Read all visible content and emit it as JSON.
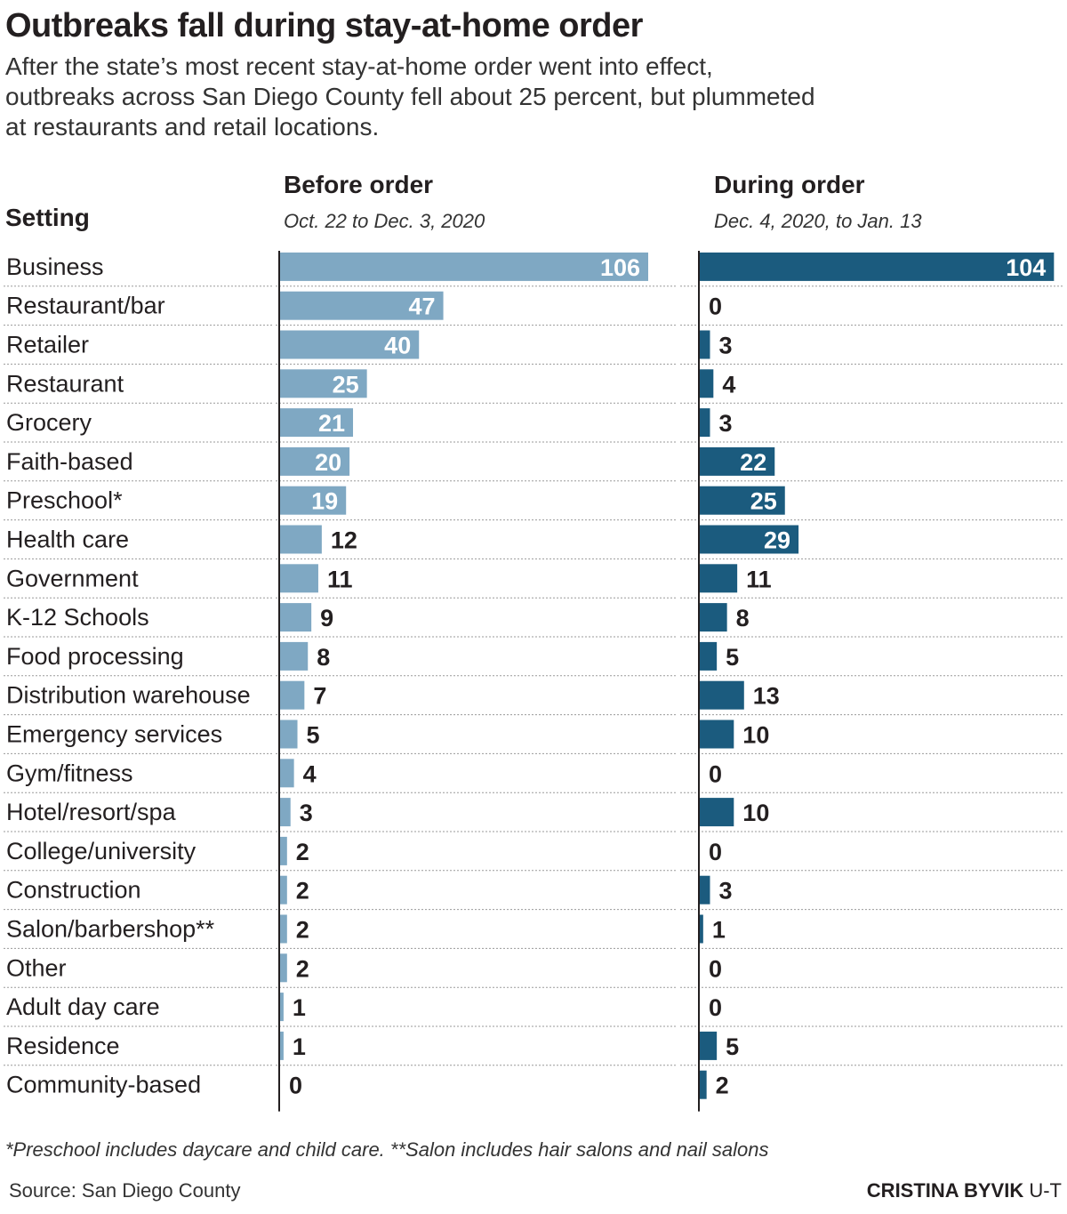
{
  "chart_data": {
    "type": "bar",
    "title": "Outbreaks fall during stay-at-home order",
    "subtitle_lines": [
      "After the state’s most recent stay-at-home order went into effect,",
      "outbreaks across San Diego County fell about 25 percent, but plummeted",
      "at restaurants and retail locations."
    ],
    "category_header": "Setting",
    "categories": [
      "Business",
      "Restaurant/bar",
      "Retailer",
      "Restaurant",
      "Grocery",
      "Faith-based",
      "Preschool*",
      "Health care",
      "Government",
      "K-12 Schools",
      "Food processing",
      "Distribution warehouse",
      "Emergency services",
      "Gym/fitness",
      "Hotel/resort/spa",
      "College/university",
      "Construction",
      "Salon/barbershop**",
      "Other",
      "Adult day care",
      "Residence",
      "Community-based"
    ],
    "series": [
      {
        "name": "Before order",
        "period": "Oct. 22 to Dec. 3, 2020",
        "color": "#7fa8c3",
        "values": [
          106,
          47,
          40,
          25,
          21,
          20,
          19,
          12,
          11,
          9,
          8,
          7,
          5,
          4,
          3,
          2,
          2,
          2,
          2,
          1,
          1,
          0
        ]
      },
      {
        "name": "During order",
        "period": "Dec. 4, 2020, to Jan. 13",
        "color": "#1b5b7e",
        "values": [
          104,
          0,
          3,
          4,
          3,
          22,
          25,
          29,
          11,
          8,
          5,
          13,
          10,
          0,
          10,
          0,
          3,
          1,
          0,
          0,
          5,
          2
        ]
      }
    ],
    "footnote": "*Preschool includes daycare and child care. **Salon includes hair salons and nail salons",
    "source": "Source: San Diego County",
    "credit_name": "CRISTINA BYVIK",
    "credit_org": "U-T"
  },
  "colors": {
    "text": "#231f20",
    "gridline": "#9a9a9a",
    "axis": "#231f20",
    "inside_label": "#ffffff"
  }
}
